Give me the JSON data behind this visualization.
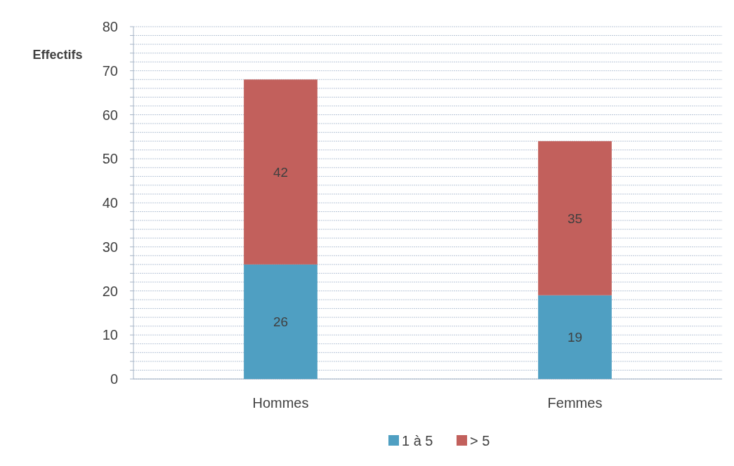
{
  "chart_data": {
    "type": "bar",
    "ylabel": "Effectifs",
    "categories": [
      "Hommes",
      "Femmes"
    ],
    "series": [
      {
        "name": "1 à 5",
        "color": "#4f9fc2",
        "values": [
          26,
          19
        ]
      },
      {
        "name": "> 5",
        "color": "#c2605c",
        "values": [
          42,
          35
        ]
      }
    ],
    "stacked": true,
    "data_labels": true,
    "ylim": [
      0,
      80
    ],
    "yticks": [
      0,
      {
        "value": 2,
        "label": null
      },
      {
        "value": 4,
        "label": null
      },
      {
        "value": 6,
        "label": null
      },
      {
        "value": 8,
        "label": null
      },
      10,
      {
        "value": 12,
        "label": null
      },
      {
        "value": 14,
        "label": null
      },
      {
        "value": 16,
        "label": null
      },
      {
        "value": 18,
        "label": null
      },
      20,
      {
        "value": 22,
        "label": null
      },
      {
        "value": 24,
        "label": null
      },
      {
        "value": 26,
        "label": null
      },
      {
        "value": 28,
        "label": null
      },
      30,
      {
        "value": 32,
        "label": null
      },
      {
        "value": 34,
        "label": null
      },
      {
        "value": 36,
        "label": null
      },
      {
        "value": 38,
        "label": null
      },
      40,
      {
        "value": 42,
        "label": null
      },
      {
        "value": 44,
        "label": null
      },
      {
        "value": 46,
        "label": null
      },
      {
        "value": 48,
        "label": null
      },
      50,
      {
        "value": 52,
        "label": null
      },
      {
        "value": 54,
        "label": null
      },
      {
        "value": 56,
        "label": null
      },
      {
        "value": 58,
        "label": null
      },
      60,
      {
        "value": 62,
        "label": null
      },
      {
        "value": 64,
        "label": null
      },
      {
        "value": 66,
        "label": null
      },
      {
        "value": 68,
        "label": null
      },
      70,
      {
        "value": 72,
        "label": null
      },
      {
        "value": 74,
        "label": null
      },
      {
        "value": 76,
        "label": null
      },
      {
        "value": 78,
        "label": null
      },
      80
    ],
    "grid": "y",
    "legend": "bottom"
  }
}
